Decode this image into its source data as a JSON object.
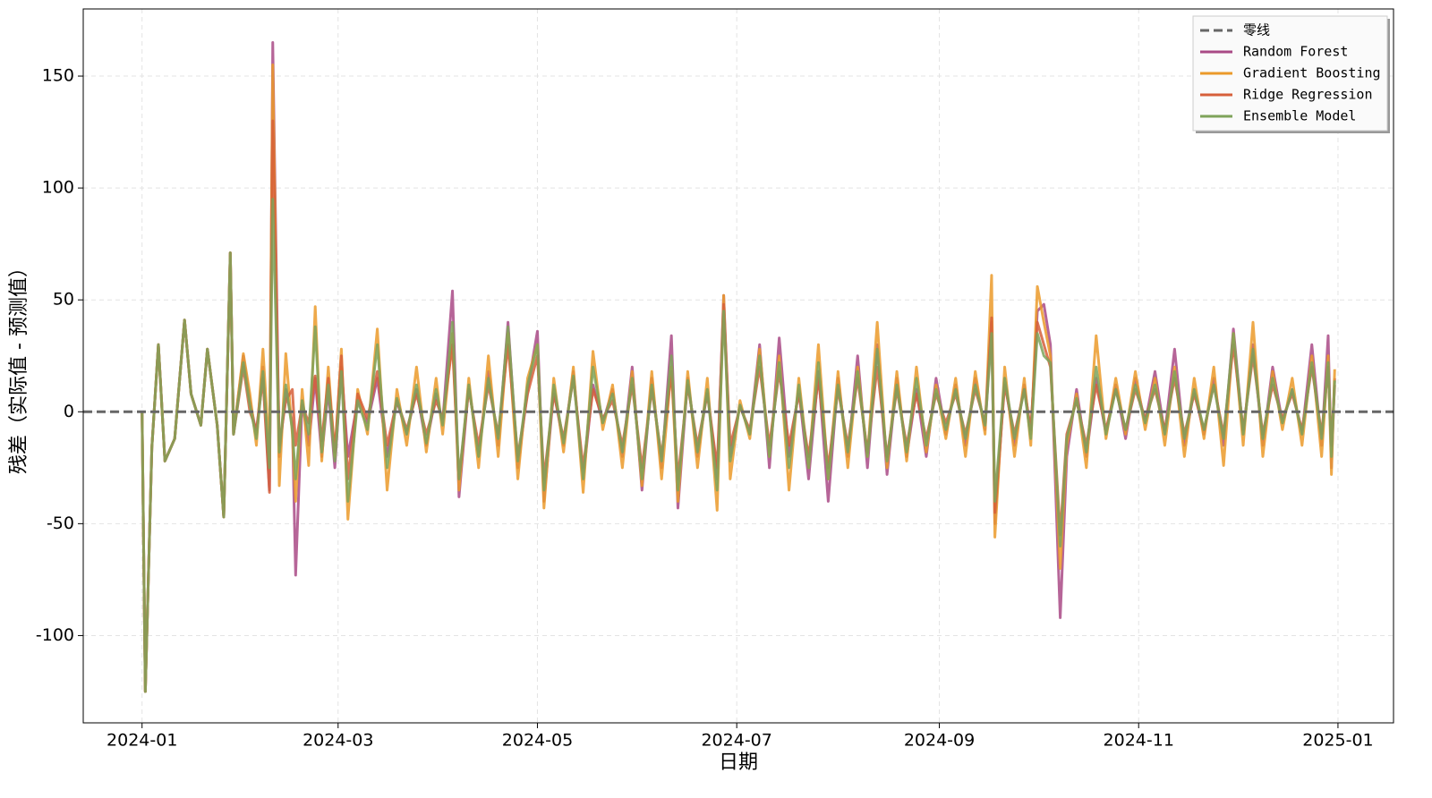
{
  "chart_data": {
    "type": "line",
    "xlabel": "日期",
    "ylabel": "残差（实际值 - 预测值）",
    "x": [
      0,
      1,
      3,
      5,
      7,
      10,
      13,
      15,
      18,
      20,
      23,
      25,
      27,
      28,
      31,
      33,
      35,
      37,
      39,
      40,
      42,
      44,
      46,
      47,
      49,
      51,
      53,
      55,
      57,
      59,
      61,
      63,
      66,
      69,
      72,
      75,
      78,
      81,
      84,
      87,
      90,
      92,
      95,
      97,
      100,
      103,
      106,
      109,
      112,
      115,
      118,
      121,
      123,
      126,
      129,
      132,
      135,
      138,
      141,
      144,
      147,
      150,
      153,
      156,
      159,
      162,
      164,
      167,
      170,
      173,
      176,
      178,
      180,
      183,
      186,
      189,
      192,
      195,
      198,
      201,
      204,
      207,
      210,
      213,
      216,
      219,
      222,
      225,
      228,
      231,
      234,
      237,
      240,
      243,
      246,
      249,
      252,
      255,
      258,
      260,
      261,
      264,
      267,
      270,
      272,
      274,
      276,
      278,
      281,
      283,
      286,
      289,
      292,
      295,
      298,
      301,
      304,
      307,
      310,
      313,
      316,
      319,
      322,
      325,
      328,
      331,
      334,
      337,
      340,
      343,
      346,
      349,
      352,
      355,
      358,
      361,
      363,
      364,
      365
    ],
    "xlim": [
      -18,
      383
    ],
    "xticks": [
      {
        "value": 0,
        "label": "2024-01"
      },
      {
        "value": 60,
        "label": "2024-03"
      },
      {
        "value": 121,
        "label": "2024-05"
      },
      {
        "value": 182,
        "label": "2024-07"
      },
      {
        "value": 244,
        "label": "2024-09"
      },
      {
        "value": 305,
        "label": "2024-11"
      },
      {
        "value": 366,
        "label": "2025-01"
      }
    ],
    "ylim": [
      -139,
      180
    ],
    "yticks": [
      -100,
      -50,
      0,
      50,
      100,
      150
    ],
    "grid": true,
    "legend": "upper right",
    "reference_line": {
      "name": "零线",
      "value": 0,
      "color": "#666666"
    },
    "series": [
      {
        "name": "Random Forest",
        "color": "#a94a86",
        "values": [
          0,
          -125,
          -16,
          30,
          -22,
          -12,
          41,
          8,
          -6,
          28,
          -6,
          -47,
          71,
          -10,
          25,
          5,
          -10,
          20,
          -35,
          165,
          -20,
          10,
          -5,
          -73,
          5,
          -15,
          15,
          -20,
          10,
          -25,
          20,
          -20,
          5,
          -5,
          15,
          -20,
          5,
          -10,
          10,
          -15,
          8,
          -5,
          54,
          -38,
          12,
          -20,
          18,
          -15,
          40,
          -25,
          10,
          36,
          -40,
          10,
          -15,
          18,
          -30,
          12,
          -5,
          10,
          -20,
          20,
          -35,
          15,
          -25,
          34,
          -43,
          15,
          -20,
          10,
          -30,
          52,
          -20,
          3,
          -10,
          30,
          -25,
          33,
          -20,
          10,
          -30,
          18,
          -40,
          15,
          -20,
          25,
          -25,
          30,
          -28,
          15,
          -20,
          10,
          -20,
          15,
          -10,
          12,
          -15,
          15,
          -8,
          40,
          -50,
          15,
          -15,
          12,
          -10,
          45,
          48,
          30,
          -92,
          -20,
          10,
          -20,
          15,
          -10,
          12,
          -12,
          15,
          -5,
          18,
          -10,
          28,
          -15,
          10,
          -10,
          15,
          -15,
          37,
          -10,
          30,
          -15,
          20,
          -5,
          10,
          -10,
          30,
          -15,
          34,
          -25,
          15
        ]
      },
      {
        "name": "Gradient Boosting",
        "color": "#eb9a2a",
        "values": [
          0,
          -125,
          -16,
          30,
          -22,
          -12,
          41,
          8,
          -6,
          28,
          -6,
          -47,
          71,
          -10,
          26,
          8,
          -15,
          28,
          -20,
          155,
          -33,
          26,
          -10,
          -40,
          10,
          -24,
          47,
          -22,
          20,
          -20,
          28,
          -48,
          10,
          -10,
          37,
          -35,
          10,
          -15,
          20,
          -18,
          15,
          -10,
          35,
          -35,
          15,
          -25,
          25,
          -20,
          35,
          -30,
          15,
          30,
          -43,
          15,
          -18,
          20,
          -36,
          27,
          -8,
          12,
          -25,
          18,
          -33,
          18,
          -30,
          20,
          -40,
          18,
          -25,
          15,
          -44,
          52,
          -30,
          5,
          -12,
          28,
          -20,
          25,
          -35,
          15,
          -25,
          30,
          -30,
          18,
          -25,
          20,
          -20,
          40,
          -25,
          18,
          -22,
          20,
          -18,
          12,
          -12,
          15,
          -20,
          18,
          -10,
          61,
          -56,
          20,
          -20,
          15,
          -15,
          56,
          40,
          25,
          -70,
          -15,
          8,
          -25,
          34,
          -12,
          15,
          -10,
          18,
          -8,
          15,
          -15,
          20,
          -20,
          15,
          -12,
          20,
          -24,
          35,
          -15,
          40,
          -20,
          18,
          -8,
          15,
          -15,
          25,
          -20,
          25,
          -28,
          19
        ]
      },
      {
        "name": "Ridge Regression",
        "color": "#d65f3a",
        "values": [
          0,
          -125,
          -16,
          30,
          -22,
          -12,
          41,
          8,
          -6,
          28,
          -6,
          -47,
          71,
          -10,
          20,
          0,
          -8,
          15,
          -36,
          130,
          -15,
          5,
          10,
          -15,
          3,
          -5,
          16,
          -13,
          15,
          -18,
          25,
          -30,
          8,
          -3,
          18,
          -15,
          5,
          -8,
          8,
          -10,
          5,
          -3,
          30,
          -30,
          10,
          -15,
          12,
          -10,
          30,
          -20,
          8,
          25,
          -30,
          8,
          -12,
          15,
          -25,
          10,
          -3,
          5,
          -15,
          12,
          -25,
          10,
          -20,
          18,
          -30,
          12,
          -15,
          8,
          -25,
          48,
          -15,
          2,
          -8,
          20,
          -15,
          18,
          -15,
          8,
          -20,
          15,
          -25,
          10,
          -15,
          15,
          -18,
          20,
          -20,
          10,
          -15,
          8,
          -12,
          8,
          -5,
          8,
          -10,
          10,
          -5,
          42,
          -45,
          12,
          -10,
          10,
          -8,
          40,
          30,
          20,
          -55,
          -10,
          5,
          -15,
          12,
          -8,
          10,
          -8,
          10,
          -3,
          10,
          -8,
          15,
          -10,
          8,
          -8,
          12,
          -10,
          30,
          -8,
          25,
          -10,
          12,
          -3,
          8,
          -8,
          20,
          -10,
          20,
          -15,
          12
        ]
      },
      {
        "name": "Ensemble Model",
        "color": "#7ea35a",
        "values": [
          0,
          -125,
          -16,
          30,
          -22,
          -12,
          41,
          8,
          -6,
          28,
          -6,
          -47,
          71,
          -10,
          22,
          3,
          -12,
          18,
          -25,
          95,
          -18,
          12,
          -8,
          -30,
          5,
          -10,
          38,
          -18,
          12,
          -22,
          18,
          -40,
          5,
          -8,
          30,
          -25,
          6,
          -10,
          12,
          -14,
          10,
          -6,
          40,
          -30,
          12,
          -20,
          15,
          -12,
          38,
          -22,
          12,
          30,
          -35,
          12,
          -14,
          16,
          -30,
          20,
          -5,
          8,
          -18,
          15,
          -30,
          12,
          -22,
          25,
          -35,
          14,
          -18,
          10,
          -35,
          45,
          -22,
          3,
          -10,
          25,
          -20,
          22,
          -25,
          12,
          -25,
          22,
          -30,
          12,
          -18,
          18,
          -20,
          28,
          -22,
          12,
          -18,
          15,
          -15,
          10,
          -8,
          10,
          -12,
          12,
          -6,
          35,
          -40,
          15,
          -12,
          10,
          -12,
          35,
          25,
          22,
          -60,
          -12,
          6,
          -18,
          20,
          -10,
          10,
          -8,
          12,
          -5,
          12,
          -10,
          18,
          -12,
          10,
          -8,
          12,
          -12,
          35,
          -10,
          28,
          -12,
          15,
          -5,
          10,
          -10,
          22,
          -12,
          22,
          -20,
          14
        ]
      }
    ]
  }
}
